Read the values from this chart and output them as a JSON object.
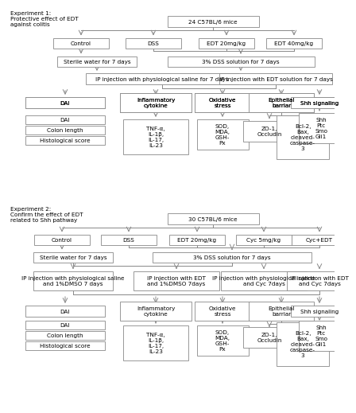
{
  "bg_color": "#ffffff",
  "box_facecolor": "#ffffff",
  "box_edgecolor": "#888888",
  "text_color": "#000000",
  "arrow_color": "#888888",
  "fontsize": 5.2,
  "exp1": {
    "label": "Experiment 1:\nProtective effect of EDT\nagainst colitis",
    "top_box": "24 C57BL/6 mice",
    "groups": [
      "Control",
      "DSS",
      "EDT 20mg/kg",
      "EDT 40mg/kg"
    ],
    "water_left": "Sterile water for 7 days",
    "water_right": "3% DSS solution for 7 days",
    "inject_left": "IP injection with physiological saline for 7 days",
    "inject_right": "IP injection with EDT solution for 7 days",
    "outcomes_top": [
      "DAI",
      "Inflammatory\ncytokine",
      "Oxidative\nstress",
      "Epithelial\nbarriar",
      "Shh signaling"
    ],
    "outcomes_sub": [
      "TNF-α,\nIL-1β,\nIL-17,\nIL-23",
      "SOD,\nMDA,\nGSH-\nPx",
      "ZO-1,\nOccludin",
      "Bcl-2,\nBax,\ncleaved-\ncaspase-\n3",
      "Shh\nPtc\nSmo\nGli1"
    ],
    "dai_group": [
      "DAI",
      "Colon length",
      "Histological score"
    ]
  },
  "exp2": {
    "label": "Experiment 2:\nConfirm the effect of EDT\nrelated to Shh pathway",
    "top_box": "30 C57BL/6 mice",
    "groups": [
      "Control",
      "DSS",
      "EDT 20mg/kg",
      "Cyc 5mg/kg",
      "Cyc+EDT"
    ],
    "water_left": "Sterile water for 7 days",
    "water_right": "3% DSS solution for 7 days",
    "inject_groups": [
      "IP injection with physiological saline\nand 1%DMSO 7 days",
      "IP injection with EDT\nand 1%DMSO 7days",
      "IP injection with physiological saline\nand Cyc 7days",
      "IP injection with EDT\nand Cyc 7days"
    ],
    "outcomes_top": [
      "DAI",
      "Inflammatory\ncytokine",
      "Oxidative\nstress",
      "Epithelial\nbarriar",
      "Shh signaling"
    ],
    "outcomes_sub": [
      "TNF-α,\nIL-1β,\nIL-17,\nIL-23",
      "SOD,\nMDA,\nGSH-\nPx",
      "ZO-1,\nOccludin",
      "Bcl-2,\nBax,\ncleaved-\ncaspase-\n3",
      "Shh\nPtc\nSmo\nGli1"
    ],
    "dai_group": [
      "DAI",
      "Colon length",
      "Histological score"
    ]
  }
}
